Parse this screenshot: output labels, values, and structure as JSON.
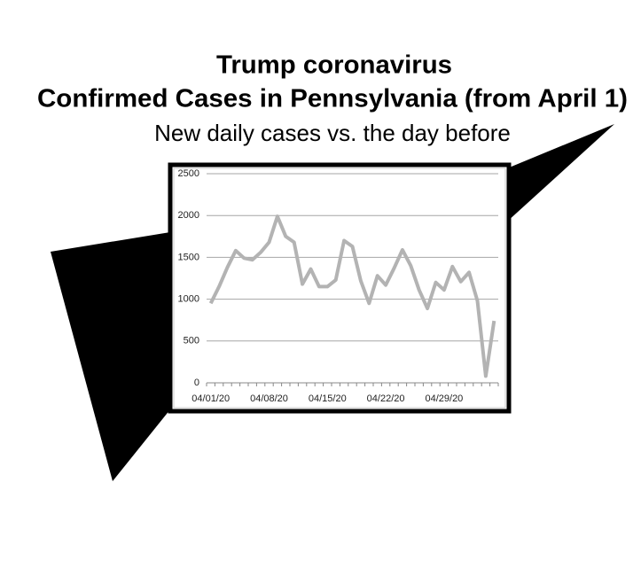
{
  "chart_data": {
    "type": "line",
    "title": [
      "Trump coronavirus",
      "Confirmed Cases in Pennsylvania (from April 1)"
    ],
    "subtitle": "New daily cases vs. the day before",
    "categories": [
      "04/01/20",
      null,
      null,
      null,
      null,
      null,
      null,
      "04/08/20",
      null,
      null,
      null,
      null,
      null,
      null,
      "04/15/20",
      null,
      null,
      null,
      null,
      null,
      null,
      "04/22/20",
      null,
      null,
      null,
      null,
      null,
      null,
      "04/29/20",
      null,
      null,
      null,
      null,
      null,
      null
    ],
    "series": [
      {
        "color": "#b3b3b3",
        "values": [
          950,
          1150,
          1380,
          1580,
          1490,
          1470,
          1560,
          1680,
          1990,
          1750,
          1680,
          1180,
          1360,
          1150,
          1150,
          1230,
          1700,
          1630,
          1220,
          950,
          1280,
          1170,
          1370,
          1590,
          1400,
          1110,
          890,
          1200,
          1110,
          1390,
          1210,
          1320,
          980,
          80,
          740
        ]
      }
    ],
    "ylim": [
      0,
      2500
    ],
    "yticks": [
      0,
      500,
      1000,
      1500,
      2000,
      2500
    ],
    "grid": true
  }
}
